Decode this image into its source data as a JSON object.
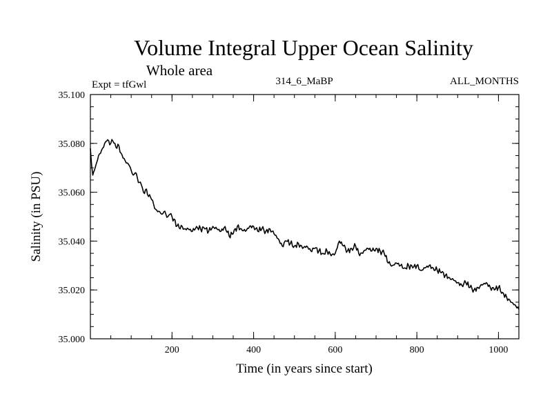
{
  "chart_data": {
    "type": "line",
    "title": "Volume Integral Upper Ocean Salinity",
    "subtitle": "Whole area",
    "expt_label": "Expt = tfGwl",
    "run_label": "314_6_MaBP",
    "months_label": "ALL_MONTHS",
    "xlabel": "Time (in years since start)",
    "ylabel": "Salinity (in PSU)",
    "xlim": [
      0,
      1050
    ],
    "ylim": [
      35.0,
      35.1
    ],
    "xticks": [
      200,
      400,
      600,
      800,
      1000
    ],
    "yticks": [
      "35.000",
      "35.020",
      "35.040",
      "35.060",
      "35.080",
      "35.100"
    ],
    "line_color": "#000000",
    "series": [
      {
        "name": "salinity",
        "x": [
          0,
          3,
          6,
          10,
          15,
          20,
          25,
          30,
          35,
          40,
          45,
          50,
          55,
          60,
          65,
          70,
          75,
          80,
          85,
          90,
          95,
          100,
          105,
          110,
          115,
          120,
          125,
          130,
          135,
          140,
          145,
          150,
          155,
          160,
          165,
          170,
          175,
          180,
          185,
          190,
          195,
          200,
          205,
          210,
          215,
          220,
          225,
          230,
          240,
          250,
          260,
          270,
          280,
          290,
          300,
          310,
          320,
          330,
          340,
          350,
          360,
          370,
          380,
          390,
          400,
          410,
          420,
          430,
          440,
          450,
          460,
          470,
          480,
          490,
          500,
          510,
          520,
          530,
          540,
          550,
          560,
          570,
          580,
          590,
          600,
          610,
          620,
          630,
          640,
          650,
          660,
          670,
          680,
          690,
          700,
          710,
          720,
          730,
          740,
          750,
          760,
          770,
          780,
          790,
          800,
          810,
          820,
          830,
          840,
          850,
          860,
          870,
          880,
          890,
          900,
          910,
          920,
          930,
          940,
          950,
          960,
          970,
          980,
          990,
          1000,
          1010,
          1020,
          1030,
          1040,
          1050
        ],
        "values": [
          35.078,
          35.071,
          35.067,
          35.069,
          35.072,
          35.075,
          35.076,
          35.078,
          35.08,
          35.081,
          35.081,
          35.08,
          35.081,
          35.08,
          35.078,
          35.079,
          35.076,
          35.074,
          35.073,
          35.072,
          35.071,
          35.069,
          35.067,
          35.068,
          35.066,
          35.064,
          35.063,
          35.06,
          35.061,
          35.059,
          35.059,
          35.057,
          35.055,
          35.053,
          35.052,
          35.052,
          35.051,
          35.052,
          35.051,
          35.05,
          35.051,
          35.05,
          35.049,
          35.046,
          35.047,
          35.045,
          35.046,
          35.045,
          35.045,
          35.044,
          35.046,
          35.045,
          35.045,
          35.044,
          35.046,
          35.045,
          35.044,
          35.046,
          35.042,
          35.043,
          35.046,
          35.045,
          35.044,
          35.046,
          35.046,
          35.044,
          35.045,
          35.044,
          35.045,
          35.043,
          35.041,
          35.038,
          35.04,
          35.039,
          35.038,
          35.039,
          35.037,
          35.038,
          35.036,
          35.037,
          35.036,
          35.035,
          35.036,
          35.034,
          35.035,
          35.04,
          35.038,
          35.036,
          35.037,
          35.038,
          35.034,
          35.036,
          35.037,
          35.036,
          35.037,
          35.036,
          35.035,
          35.031,
          35.03,
          35.031,
          35.03,
          35.029,
          35.03,
          35.029,
          35.03,
          35.028,
          35.029,
          35.03,
          35.029,
          35.028,
          35.027,
          35.026,
          35.025,
          35.024,
          35.023,
          35.022,
          35.023,
          35.021,
          35.02,
          35.021,
          35.022,
          35.023,
          35.021,
          35.02,
          35.021,
          35.019,
          35.017,
          35.015,
          35.014,
          35.012
        ]
      }
    ]
  }
}
